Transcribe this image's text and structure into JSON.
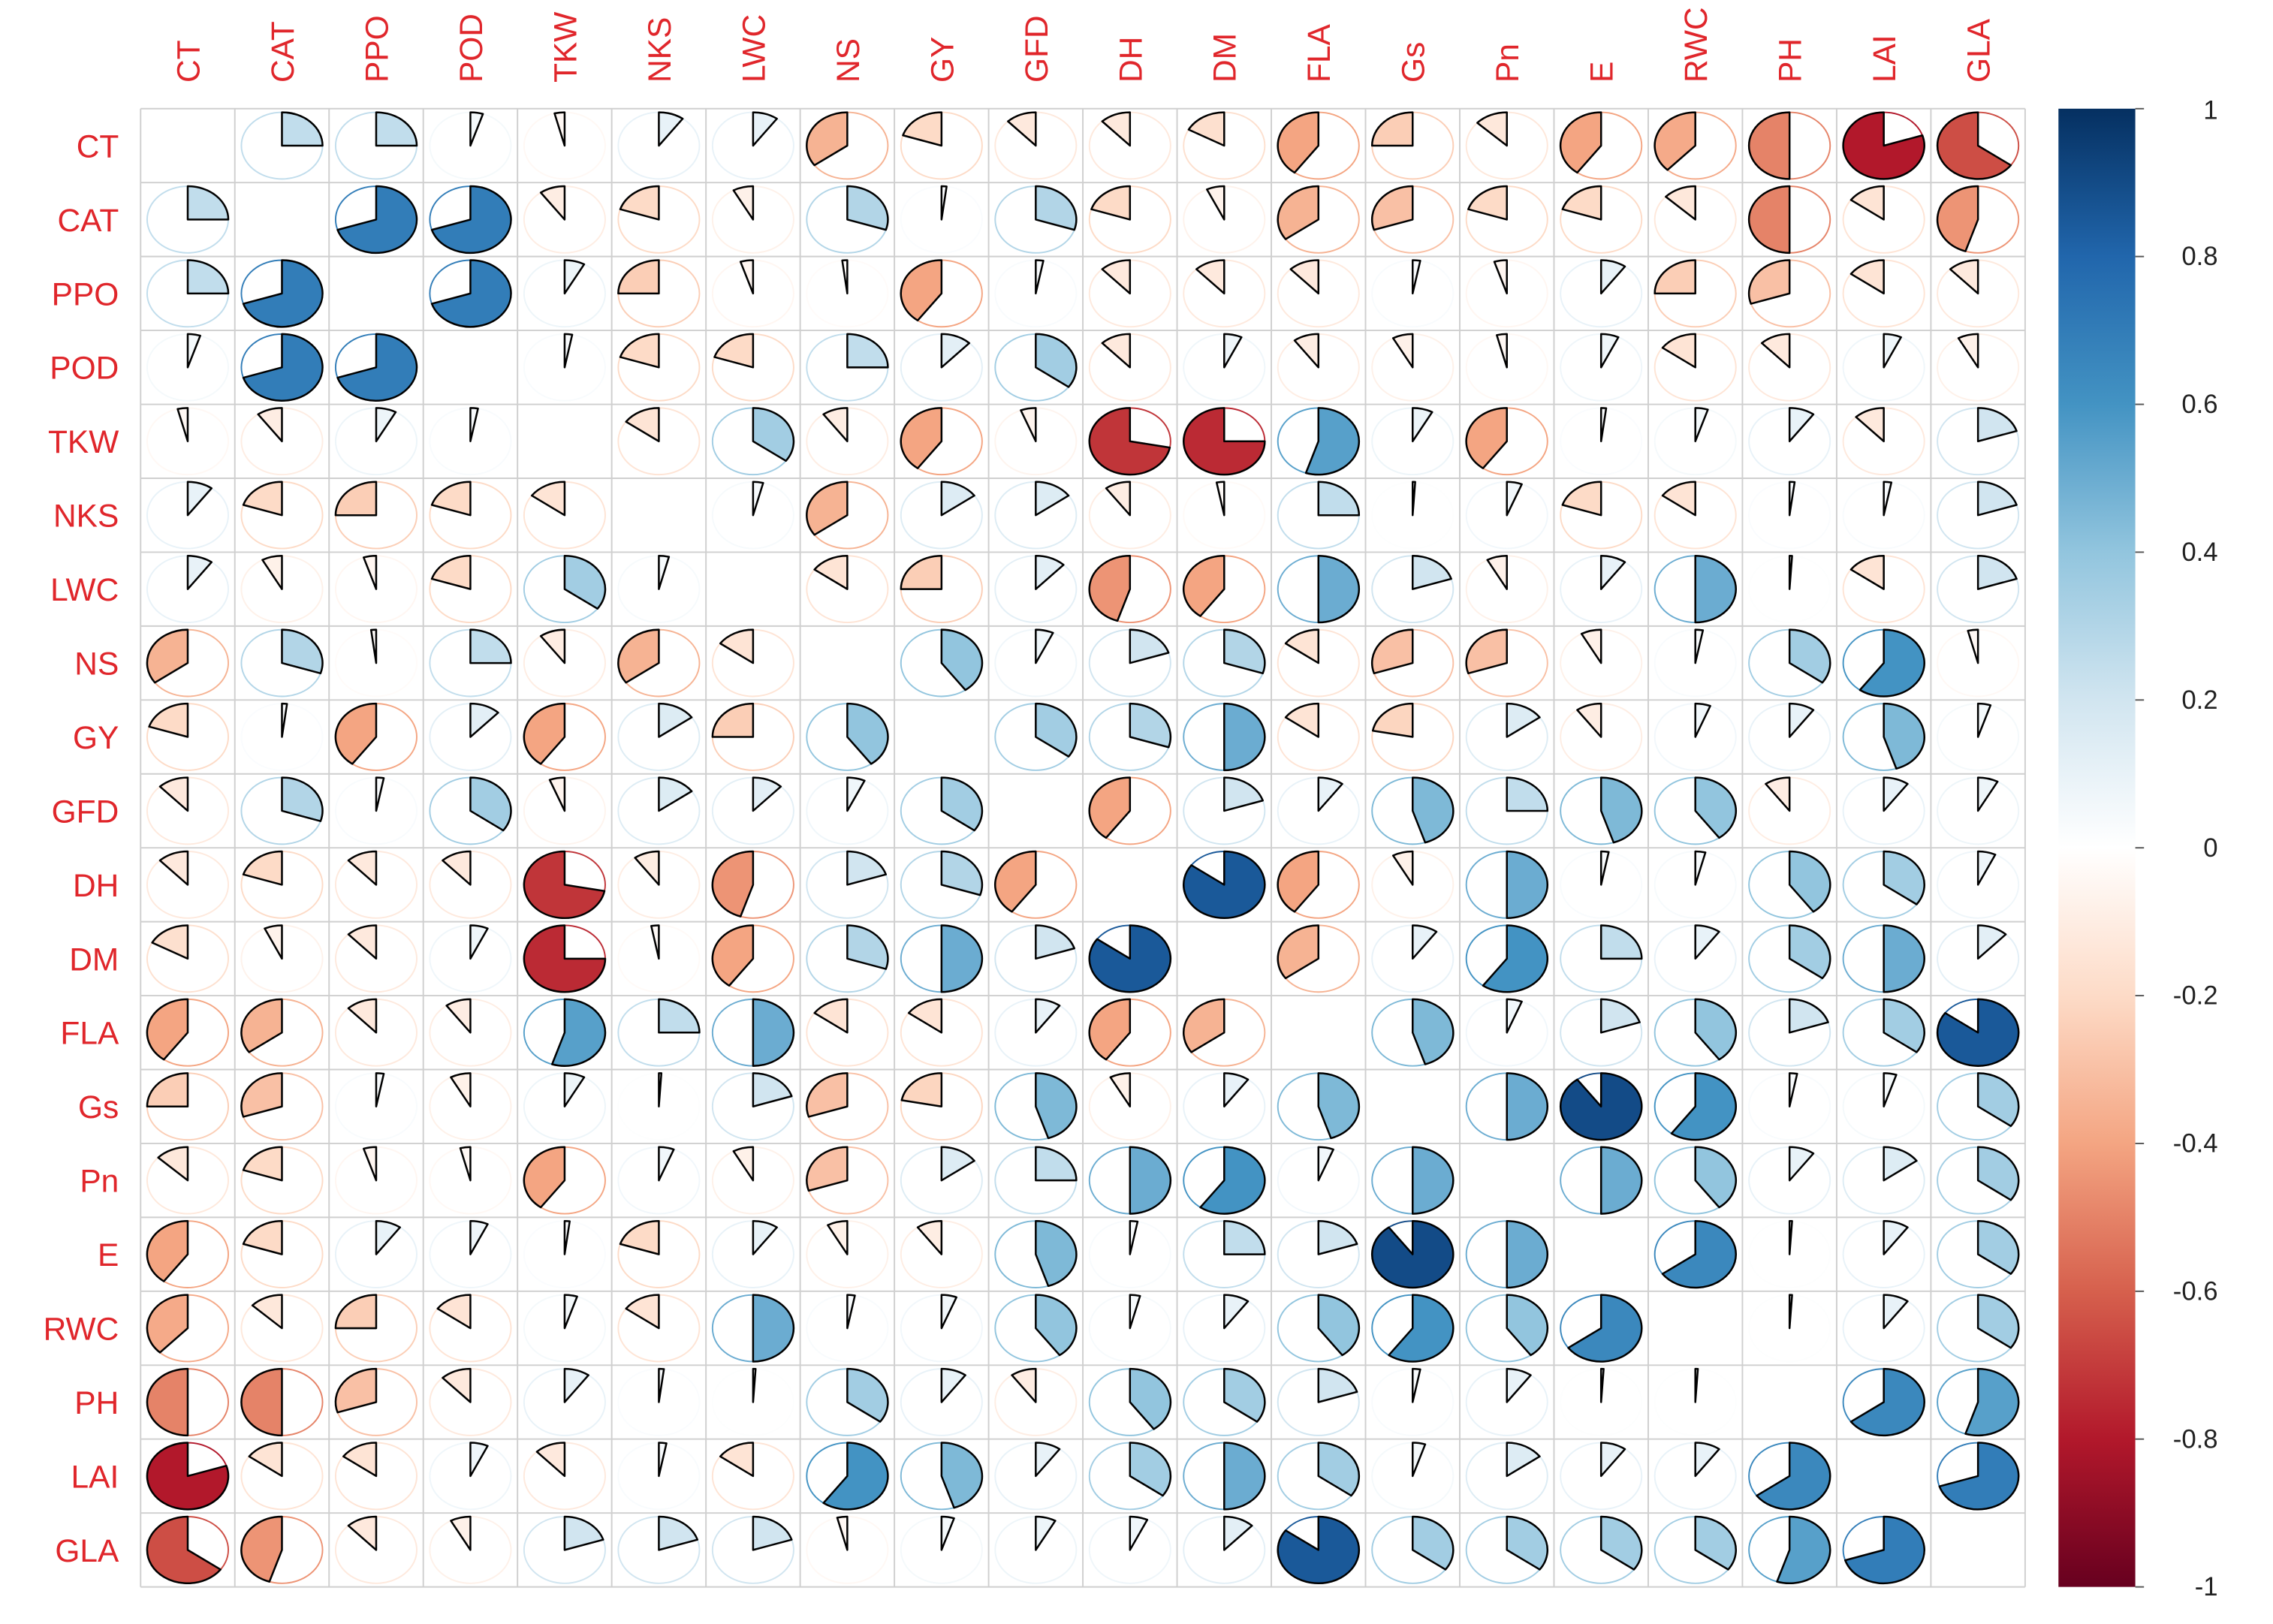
{
  "chart_data": {
    "type": "corrplot-pie",
    "variables": [
      "CT",
      "CAT",
      "PPO",
      "POD",
      "TKW",
      "NKS",
      "LWC",
      "NS",
      "GY",
      "GFD",
      "DH",
      "DM",
      "FLA",
      "Gs",
      "Pn",
      "E",
      "RWC",
      "PH",
      "LAI",
      "GLA"
    ],
    "matrix": [
      [
        null,
        0.25,
        0.25,
        0.05,
        -0.04,
        0.1,
        0.1,
        -0.35,
        -0.2,
        -0.12,
        -0.12,
        -0.17,
        -0.4,
        -0.25,
        -0.13,
        -0.4,
        -0.38,
        -0.5,
        -0.8,
        -0.65
      ],
      [
        0.25,
        null,
        0.7,
        0.7,
        -0.1,
        -0.2,
        -0.08,
        0.3,
        0.02,
        0.3,
        -0.2,
        -0.07,
        -0.35,
        -0.3,
        -0.2,
        -0.2,
        -0.13,
        -0.5,
        -0.15,
        -0.45
      ],
      [
        0.25,
        0.7,
        null,
        0.7,
        0.08,
        -0.25,
        -0.05,
        -0.02,
        -0.4,
        0.03,
        -0.12,
        -0.12,
        -0.12,
        0.03,
        -0.05,
        0.1,
        -0.25,
        -0.3,
        -0.15,
        -0.12
      ],
      [
        0.05,
        0.7,
        0.7,
        null,
        0.03,
        -0.2,
        -0.2,
        0.25,
        0.12,
        0.35,
        -0.12,
        0.07,
        -0.1,
        -0.08,
        -0.04,
        0.07,
        -0.15,
        -0.12,
        0.07,
        -0.08
      ],
      [
        -0.04,
        -0.1,
        0.08,
        0.03,
        null,
        -0.15,
        0.35,
        -0.1,
        -0.4,
        -0.06,
        -0.72,
        -0.75,
        0.55,
        0.08,
        -0.4,
        0.02,
        0.05,
        0.1,
        -0.12,
        0.2
      ],
      [
        0.1,
        -0.2,
        -0.25,
        -0.2,
        -0.15,
        null,
        0.04,
        -0.35,
        0.15,
        0.15,
        -0.1,
        -0.03,
        0.25,
        0.01,
        0.06,
        -0.2,
        -0.15,
        0.02,
        0.03,
        0.2
      ],
      [
        0.1,
        -0.08,
        -0.05,
        -0.2,
        0.35,
        0.04,
        null,
        -0.15,
        -0.25,
        0.12,
        -0.45,
        -0.4,
        0.5,
        0.2,
        -0.08,
        0.1,
        0.5,
        0.01,
        -0.15,
        0.2
      ],
      [
        -0.35,
        0.3,
        -0.02,
        0.25,
        -0.1,
        -0.35,
        -0.15,
        null,
        0.4,
        0.07,
        0.2,
        0.3,
        -0.15,
        -0.3,
        -0.3,
        -0.08,
        0.03,
        0.35,
        0.6,
        -0.04
      ],
      [
        -0.2,
        0.02,
        -0.4,
        0.12,
        -0.4,
        0.15,
        -0.25,
        0.4,
        null,
        0.35,
        0.3,
        0.5,
        -0.15,
        -0.22,
        0.15,
        -0.1,
        0.06,
        0.1,
        0.45,
        0.05
      ],
      [
        -0.12,
        0.3,
        0.03,
        0.35,
        -0.06,
        0.15,
        0.12,
        0.07,
        0.35,
        null,
        -0.4,
        0.2,
        0.1,
        0.45,
        0.25,
        0.45,
        0.4,
        -0.1,
        0.1,
        0.08
      ],
      [
        -0.12,
        -0.2,
        -0.12,
        -0.12,
        -0.72,
        -0.1,
        -0.45,
        0.2,
        0.3,
        -0.4,
        null,
        0.85,
        -0.4,
        -0.08,
        0.5,
        0.03,
        0.04,
        0.4,
        0.35,
        0.07
      ],
      [
        -0.17,
        -0.07,
        -0.12,
        0.07,
        -0.75,
        -0.03,
        -0.4,
        0.3,
        0.5,
        0.2,
        0.85,
        null,
        -0.35,
        0.1,
        0.6,
        0.25,
        0.1,
        0.35,
        0.5,
        0.12
      ],
      [
        -0.4,
        -0.35,
        -0.12,
        -0.1,
        0.55,
        0.25,
        0.5,
        -0.15,
        -0.15,
        0.1,
        -0.4,
        -0.35,
        null,
        0.45,
        0.06,
        0.2,
        0.4,
        0.2,
        0.35,
        0.85
      ],
      [
        -0.25,
        -0.3,
        0.03,
        -0.08,
        0.08,
        0.01,
        0.2,
        -0.3,
        -0.22,
        0.45,
        -0.08,
        0.1,
        0.45,
        null,
        0.5,
        0.9,
        0.6,
        0.03,
        0.05,
        0.35
      ],
      [
        -0.13,
        -0.2,
        -0.05,
        -0.04,
        -0.4,
        0.06,
        -0.08,
        -0.3,
        0.15,
        0.25,
        0.5,
        0.6,
        0.06,
        0.5,
        null,
        0.5,
        0.4,
        0.1,
        0.15,
        0.35
      ],
      [
        -0.4,
        -0.2,
        0.1,
        0.07,
        0.02,
        -0.2,
        0.1,
        -0.08,
        -0.1,
        0.45,
        0.03,
        0.25,
        0.2,
        0.9,
        0.5,
        null,
        0.65,
        0.01,
        0.1,
        0.35
      ],
      [
        -0.38,
        -0.13,
        -0.25,
        -0.15,
        0.05,
        -0.15,
        0.5,
        0.03,
        0.06,
        0.4,
        0.04,
        0.1,
        0.4,
        0.6,
        0.4,
        0.65,
        null,
        0.01,
        0.1,
        0.35
      ],
      [
        -0.5,
        -0.5,
        -0.3,
        -0.12,
        0.1,
        0.02,
        0.01,
        0.35,
        0.1,
        -0.1,
        0.4,
        0.35,
        0.2,
        0.03,
        0.1,
        0.01,
        0.01,
        null,
        0.65,
        0.55
      ],
      [
        -0.8,
        -0.15,
        -0.15,
        0.07,
        -0.12,
        0.03,
        -0.15,
        0.6,
        0.45,
        0.1,
        0.35,
        0.5,
        0.35,
        0.05,
        0.15,
        0.1,
        0.1,
        0.65,
        null,
        0.7
      ],
      [
        -0.65,
        -0.45,
        -0.12,
        -0.08,
        0.2,
        0.2,
        0.2,
        -0.04,
        0.05,
        0.08,
        0.07,
        0.12,
        0.85,
        0.35,
        0.35,
        0.35,
        0.35,
        0.55,
        0.7,
        null
      ]
    ],
    "clim": [
      -1,
      1
    ],
    "colorbar_ticks": [
      1,
      0.8,
      0.6,
      0.4,
      0.2,
      0,
      -0.2,
      -0.4,
      -0.6,
      -0.8,
      -1
    ],
    "colormap": [
      "#67001F",
      "#B2182B",
      "#D6604D",
      "#F4A582",
      "#FDDBC7",
      "#FFFFFF",
      "#D1E5F0",
      "#92C5DE",
      "#4393C3",
      "#2166AC",
      "#053061"
    ],
    "label_color": "#E0262B"
  }
}
